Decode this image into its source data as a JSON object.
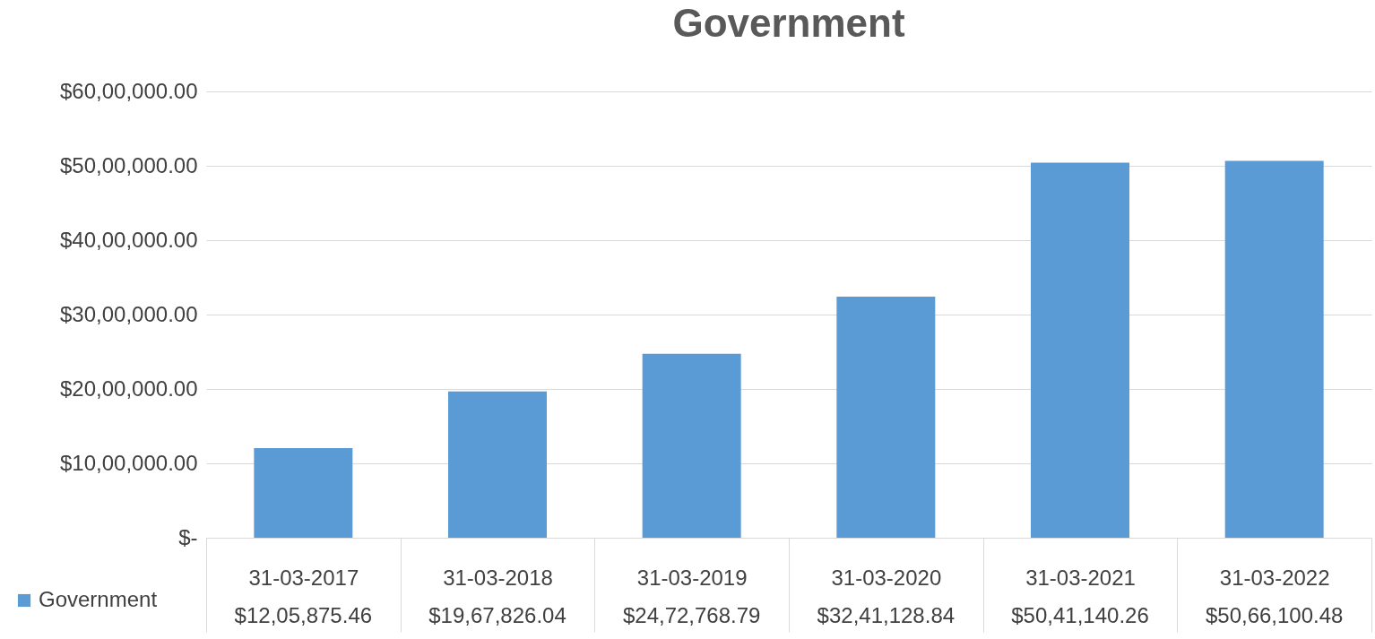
{
  "chart_data": {
    "type": "bar",
    "title": "Government",
    "categories": [
      "31-03-2017",
      "31-03-2018",
      "31-03-2019",
      "31-03-2020",
      "31-03-2021",
      "31-03-2022"
    ],
    "series": [
      {
        "name": "Government",
        "color": "#5b9bd5",
        "values": [
          1205875.46,
          1967826.04,
          2472768.79,
          3241128.84,
          5041140.26,
          5066100.48
        ],
        "value_labels": [
          "$12,05,875.46",
          "$19,67,826.04",
          "$24,72,768.79",
          "$32,41,128.84",
          "$50,41,140.26",
          "$50,66,100.48"
        ]
      }
    ],
    "ylim": [
      0,
      6000000
    ],
    "yticks": [
      {
        "value": 0,
        "label": "$-"
      },
      {
        "value": 1000000,
        "label": "$10,00,000.00"
      },
      {
        "value": 2000000,
        "label": "$20,00,000.00"
      },
      {
        "value": 3000000,
        "label": "$30,00,000.00"
      },
      {
        "value": 4000000,
        "label": "$40,00,000.00"
      },
      {
        "value": 5000000,
        "label": "$50,00,000.00"
      },
      {
        "value": 6000000,
        "label": "$60,00,000.00"
      }
    ],
    "grid": "y",
    "legend": "bottom left"
  }
}
